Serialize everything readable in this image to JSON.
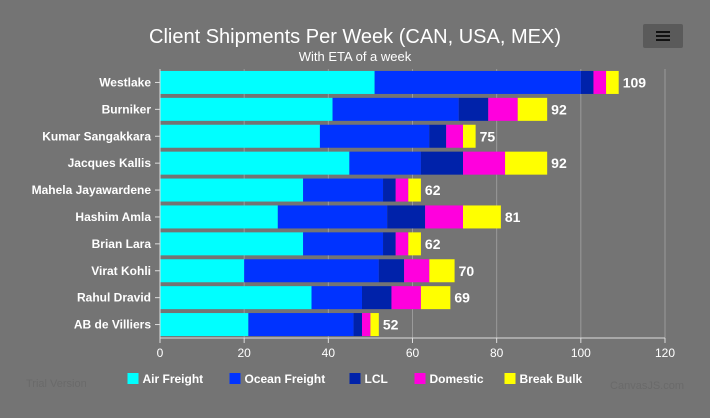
{
  "chart_data": {
    "type": "bar",
    "orientation": "horizontal",
    "stacked": true,
    "title": "Client Shipments Per Week (CAN, USA, MEX)",
    "subtitle": "With ETA of a week",
    "categories": [
      "Westlake",
      "Burniker",
      "Kumar Sangakkara",
      "Jacques Kallis",
      "Mahela Jayawardene",
      "Hashim Amla",
      "Brian Lara",
      "Virat Kohli",
      "Rahul Dravid",
      "AB de Villiers"
    ],
    "series": [
      {
        "name": "Air Freight",
        "color": "#00ffff",
        "values": [
          51,
          41,
          38,
          45,
          34,
          28,
          34,
          20,
          36,
          21
        ]
      },
      {
        "name": "Ocean Freight",
        "color": "#0033ff",
        "values": [
          49,
          30,
          26,
          17,
          19,
          26,
          19,
          32,
          12,
          25
        ]
      },
      {
        "name": "LCL",
        "color": "#0022aa",
        "values": [
          3,
          7,
          4,
          10,
          3,
          9,
          3,
          6,
          7,
          2
        ]
      },
      {
        "name": "Domestic",
        "color": "#ff00dd",
        "values": [
          3,
          7,
          4,
          10,
          3,
          9,
          3,
          6,
          7,
          2
        ]
      },
      {
        "name": "Break Bulk",
        "color": "#ffff00",
        "values": [
          3,
          7,
          3,
          10,
          3,
          9,
          3,
          6,
          7,
          2
        ]
      }
    ],
    "totals": [
      109,
      92,
      75,
      92,
      62,
      81,
      62,
      70,
      69,
      52
    ],
    "xlim": [
      0,
      120
    ],
    "x_ticks": [
      0,
      20,
      40,
      60,
      80,
      100,
      120
    ],
    "grid": true,
    "legend_position": "bottom"
  },
  "watermark": {
    "left": "Trial Version",
    "right": "CanvasJS.com"
  },
  "menu_icon": "hamburger-menu-icon"
}
